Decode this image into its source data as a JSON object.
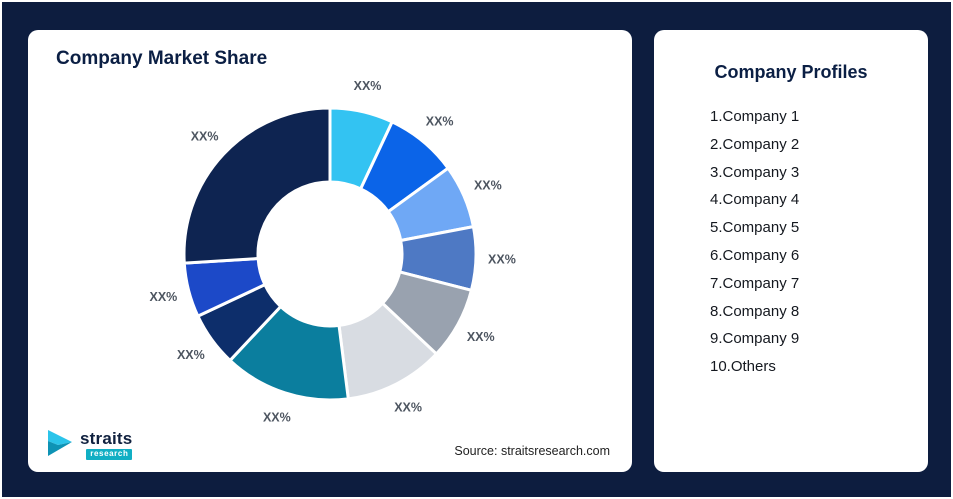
{
  "page": {
    "background": "#0D1D3F"
  },
  "left_card": {
    "title": "Company Market Share",
    "source": "Source: straitsresearch.com"
  },
  "logo": {
    "brand": "straits",
    "sub": "research",
    "mark_color_top": "#2BC4EA",
    "mark_color_bottom": "#0E93B5"
  },
  "right_card": {
    "title": "Company Profiles",
    "items": [
      "1.Company 1",
      "2.Company 2",
      "3.Company 3",
      "4.Company 4",
      "5.Company 5",
      "6.Company 6",
      "7.Company 7",
      "8.Company 8",
      "9.Company 9",
      "10.Others"
    ]
  },
  "chart_data": {
    "type": "pie",
    "subtype": "donut",
    "title": "Company Market Share",
    "legend": "none",
    "note": "All slice data labels are masked placeholders reading XX%; values are visual angle estimates in percent",
    "categories": [
      "Company 1",
      "Company 2",
      "Company 3",
      "Company 4",
      "Company 5",
      "Company 6",
      "Company 7",
      "Company 8",
      "Company 9",
      "Others"
    ],
    "labels": [
      "XX%",
      "XX%",
      "XX%",
      "XX%",
      "XX%",
      "XX%",
      "XX%",
      "XX%",
      "XX%",
      "XX%"
    ],
    "values": [
      7,
      8,
      7,
      7,
      8,
      11,
      14,
      6,
      6,
      26
    ],
    "colors": [
      "#33C3F2",
      "#0B64E8",
      "#6FA8F5",
      "#4E79C4",
      "#99A2AF",
      "#D8DCE2",
      "#0B7E9E",
      "#0D2E6B",
      "#1C49C8",
      "#0E2451"
    ],
    "start_angle_deg": 0,
    "direction": "clockwise",
    "donut_hole_ratio": 0.49,
    "slice_border_color": "#ffffff"
  }
}
